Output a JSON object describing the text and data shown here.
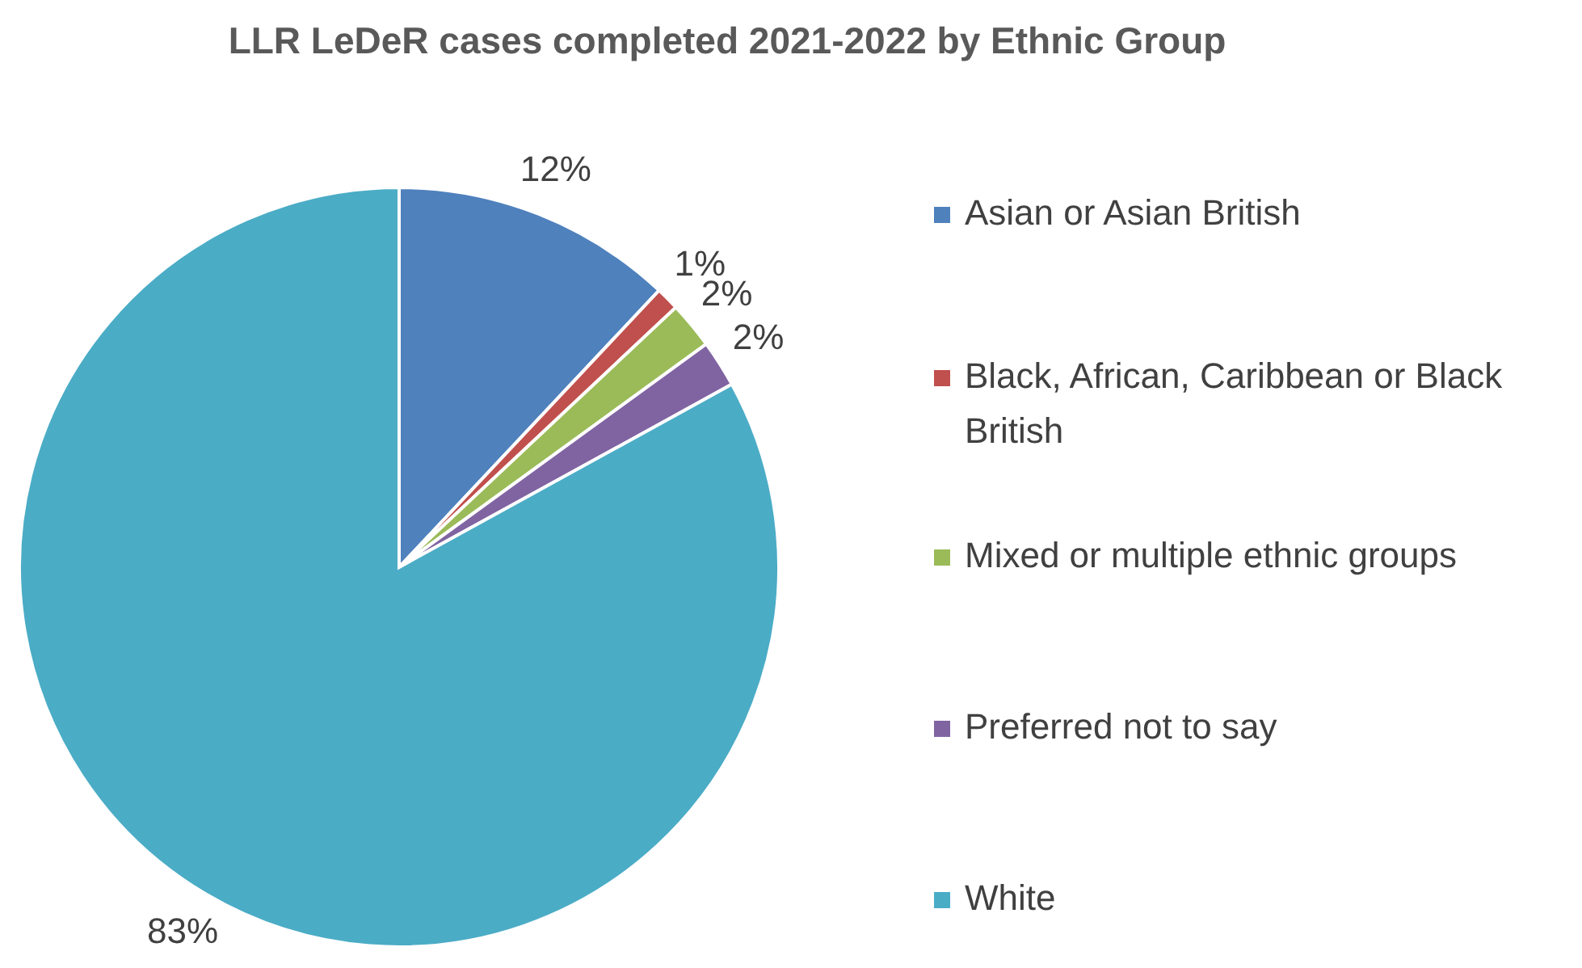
{
  "chart_data": {
    "type": "pie",
    "title": "LLR LeDeR cases completed 2021-2022 by Ethnic Group",
    "categories": [
      "Asian or Asian British",
      "Black, African, Caribbean or Black British",
      "Mixed or multiple ethnic groups",
      "Preferred not to say",
      "White"
    ],
    "values": [
      12,
      1,
      2,
      2,
      83
    ],
    "colors": [
      "#4f81bd",
      "#c0504d",
      "#9bbb59",
      "#8064a2",
      "#4bacc6"
    ],
    "value_labels": [
      "12%",
      "1%",
      "2%",
      "2%",
      "83%"
    ],
    "legend": "right"
  }
}
